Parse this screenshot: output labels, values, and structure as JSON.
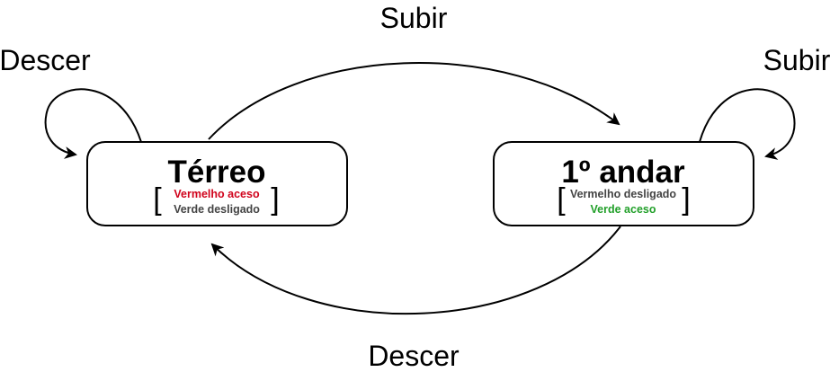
{
  "states": {
    "terreo": {
      "title": "Térreo",
      "lines": [
        {
          "text": "Vermelho aceso",
          "color": "#d0021b"
        },
        {
          "text": "Verde desligado",
          "color": "#444444"
        }
      ]
    },
    "andar": {
      "title": "1º andar",
      "lines": [
        {
          "text": "Vermelho desligado",
          "color": "#444444"
        },
        {
          "text": "Verde aceso",
          "color": "#22a02a"
        }
      ]
    }
  },
  "transitions": {
    "top": "Subir",
    "bottom": "Descer",
    "self_left": "Descer",
    "self_right": "Subir"
  },
  "brackets": {
    "open": "[",
    "close": "]"
  }
}
